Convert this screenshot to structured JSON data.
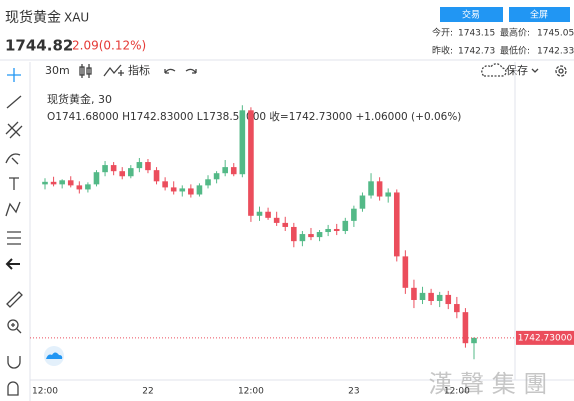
{
  "header": {
    "title": "现货黄金",
    "symbol": "XAU",
    "price": "1744.82",
    "change": "2.09(0.12%)",
    "buttons": [
      "交易",
      "全屏"
    ],
    "stats": [
      [
        "今开:",
        "1743.15",
        "最高价:",
        "1745.05"
      ],
      [
        "昨收:",
        "1742.73",
        "最低价:",
        "1742.33"
      ]
    ]
  },
  "toolbar": {
    "interval": "30m",
    "indicator": "指标",
    "save": "保存"
  },
  "watermark": "漢 聲 集 團",
  "chart_data": {
    "type": "candlestick",
    "title": "现货黄金, 30",
    "ohlc_text": "O1741.68000 H1742.83000 L1738.52000 收=1742.73000 +1.06000 (+0.06%)",
    "categories": [
      "12:00",
      null,
      null,
      null,
      null,
      null,
      null,
      null,
      null,
      null,
      null,
      null,
      "22",
      null,
      null,
      null,
      null,
      null,
      null,
      null,
      null,
      null,
      null,
      null,
      "12:00",
      null,
      null,
      null,
      null,
      null,
      null,
      null,
      null,
      null,
      null,
      null,
      "23",
      null,
      null,
      null,
      null,
      null,
      null,
      null,
      null,
      null,
      null,
      null,
      "12:00",
      null,
      null
    ],
    "open": [
      1773.0,
      1773.5,
      1773.0,
      1773.8,
      1772.8,
      1772.0,
      1773.0,
      1775.4,
      1776.8,
      1775.6,
      1774.6,
      1776.2,
      1777.4,
      1775.8,
      1773.6,
      1772.4,
      1771.6,
      1772.2,
      1771.0,
      1772.8,
      1774.0,
      1775.2,
      1776.4,
      1775.0,
      1787.6,
      1766.8,
      1767.6,
      1766.4,
      1765.4,
      1764.6,
      1761.8,
      1763.2,
      1762.6,
      1763.6,
      1764.2,
      1763.8,
      1765.8,
      1768.2,
      1770.8,
      1773.6,
      1770.6,
      1771.4,
      1758.8,
      1752.6,
      1750.2,
      1751.6,
      1750.0,
      1751.2,
      1749.4,
      1747.8,
      1741.68
    ],
    "high": [
      1774.2,
      1774.5,
      1774.0,
      1774.6,
      1773.6,
      1773.4,
      1775.8,
      1777.6,
      1777.4,
      1776.4,
      1776.8,
      1778.2,
      1778.0,
      1776.4,
      1774.4,
      1773.6,
      1772.8,
      1773.0,
      1773.2,
      1774.8,
      1775.6,
      1777.8,
      1777.2,
      1788.6,
      1788.2,
      1768.6,
      1768.4,
      1767.6,
      1766.6,
      1765.4,
      1763.8,
      1764.4,
      1764.0,
      1765.0,
      1765.2,
      1766.4,
      1768.8,
      1771.4,
      1775.2,
      1774.4,
      1772.2,
      1772.0,
      1760.0,
      1754.2,
      1752.8,
      1752.4,
      1751.8,
      1752.0,
      1750.8,
      1748.6,
      1742.83
    ],
    "low": [
      1772.0,
      1772.6,
      1772.2,
      1772.4,
      1771.2,
      1771.4,
      1772.6,
      1774.6,
      1774.8,
      1774.0,
      1774.2,
      1775.4,
      1775.2,
      1773.0,
      1771.8,
      1771.0,
      1770.6,
      1770.4,
      1770.6,
      1772.2,
      1773.2,
      1774.6,
      1774.6,
      1774.4,
      1765.6,
      1765.8,
      1766.0,
      1764.8,
      1763.8,
      1760.6,
      1760.8,
      1762.0,
      1761.8,
      1762.8,
      1763.0,
      1763.2,
      1764.6,
      1767.6,
      1770.2,
      1769.8,
      1769.4,
      1757.8,
      1751.4,
      1748.6,
      1749.4,
      1749.2,
      1748.8,
      1748.4,
      1746.6,
      1740.8,
      1738.52
    ],
    "close": [
      1773.5,
      1773.0,
      1773.8,
      1772.8,
      1772.0,
      1773.0,
      1775.4,
      1776.8,
      1775.6,
      1774.6,
      1776.2,
      1777.4,
      1775.8,
      1773.6,
      1772.4,
      1771.6,
      1772.2,
      1771.0,
      1772.8,
      1774.0,
      1775.2,
      1776.4,
      1775.0,
      1787.6,
      1766.8,
      1767.6,
      1766.4,
      1765.4,
      1764.6,
      1761.8,
      1763.2,
      1762.6,
      1763.6,
      1764.2,
      1763.8,
      1765.8,
      1768.2,
      1770.8,
      1773.6,
      1770.6,
      1771.4,
      1758.8,
      1752.6,
      1750.2,
      1751.6,
      1750.0,
      1751.2,
      1749.4,
      1747.8,
      1741.68,
      1742.73
    ],
    "up_color": "#53b987",
    "down_color": "#eb4d5c",
    "ylim": [
      1736,
      1792
    ],
    "last_price": {
      "value": 1742.73,
      "label": "1742.73000"
    }
  }
}
